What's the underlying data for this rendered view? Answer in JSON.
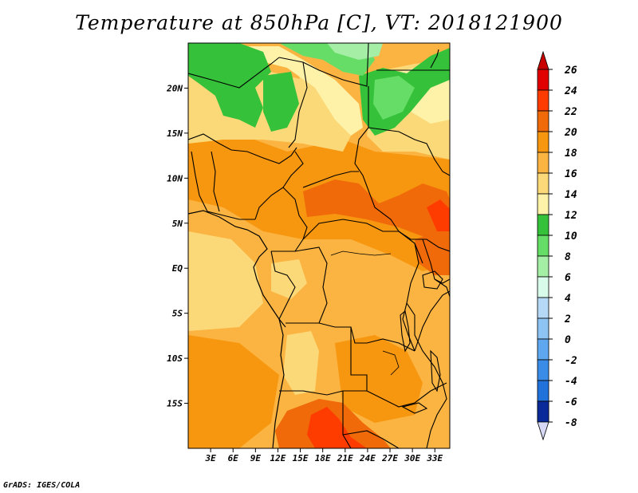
{
  "title": "Temperature at 850hPa [C], VT: 2018121900",
  "credit": "GrADS: IGES/COLA",
  "map": {
    "lon_range": [
      0,
      35
    ],
    "lat_range": [
      -20,
      25
    ],
    "lat_ticks": [
      {
        "lat": 20,
        "label": "20N"
      },
      {
        "lat": 15,
        "label": "15N"
      },
      {
        "lat": 10,
        "label": "10N"
      },
      {
        "lat": 5,
        "label": "5N"
      },
      {
        "lat": 0,
        "label": "EQ"
      },
      {
        "lat": -5,
        "label": "5S"
      },
      {
        "lat": -10,
        "label": "10S"
      },
      {
        "lat": -15,
        "label": "15S"
      }
    ],
    "lon_ticks": [
      {
        "lon": 3,
        "label": "3E"
      },
      {
        "lon": 6,
        "label": "6E"
      },
      {
        "lon": 9,
        "label": "9E"
      },
      {
        "lon": 12,
        "label": "12E"
      },
      {
        "lon": 15,
        "label": "15E"
      },
      {
        "lon": 18,
        "label": "18E"
      },
      {
        "lon": 21,
        "label": "21E"
      },
      {
        "lon": 24,
        "label": "24E"
      },
      {
        "lon": 27,
        "label": "27E"
      },
      {
        "lon": 30,
        "label": "30E"
      },
      {
        "lon": 33,
        "label": "33E"
      }
    ]
  },
  "colorbar": {
    "levels": [
      {
        "label": "26",
        "color": "#e00000"
      },
      {
        "label": "24",
        "color": "#ff3c00"
      },
      {
        "label": "22",
        "color": "#f06a0a"
      },
      {
        "label": "20",
        "color": "#f7960f"
      },
      {
        "label": "18",
        "color": "#fbb441"
      },
      {
        "label": "16",
        "color": "#fcd978"
      },
      {
        "label": "14",
        "color": "#fdf2a8"
      },
      {
        "label": "12",
        "color": "#35c23a"
      },
      {
        "label": "10",
        "color": "#66dd66"
      },
      {
        "label": "8",
        "color": "#a5eea5"
      },
      {
        "label": "6",
        "color": "#d8fbea"
      },
      {
        "label": "4",
        "color": "#b4d8f5"
      },
      {
        "label": "2",
        "color": "#8ec4f3"
      },
      {
        "label": "0",
        "color": "#5fa7ee"
      },
      {
        "label": "-2",
        "color": "#3b8ce6"
      },
      {
        "label": "-4",
        "color": "#2272dc"
      },
      {
        "label": "-6",
        "color": "#1554c6"
      },
      {
        "label": "-8",
        "color": "#0b2a9a"
      }
    ],
    "top_color": "#c80000",
    "bottom_color": "#d6d8f5"
  },
  "regions": {
    "background": "#fbb441",
    "warm_center": "#f7960f",
    "hot_core": "#f06a0a",
    "hottest": "#ff3c00",
    "cool_highland": "#fcd978",
    "mild": "#fdf2a8",
    "green": "#35c23a",
    "light_green": "#66dd66",
    "pale_green": "#a5eea5"
  }
}
